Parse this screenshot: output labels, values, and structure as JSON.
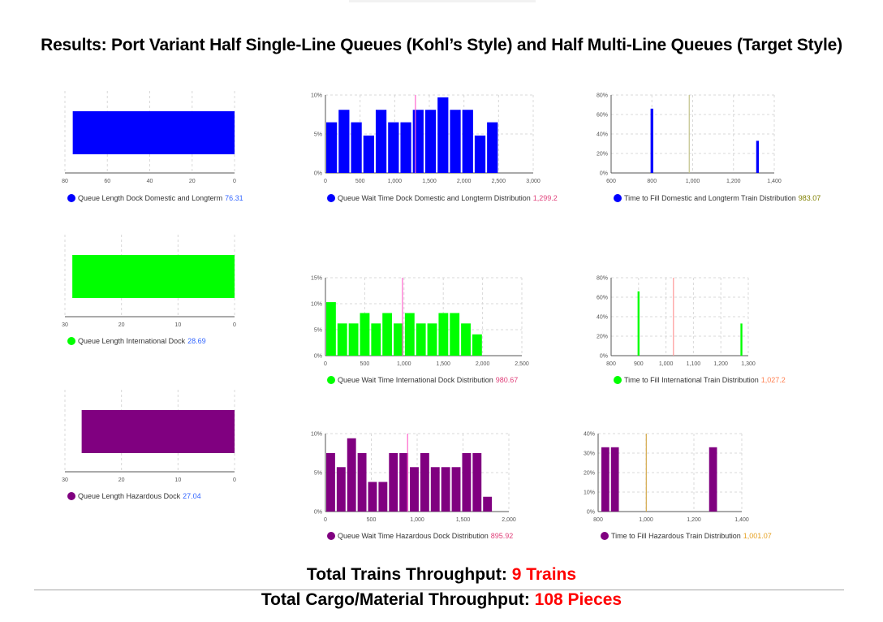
{
  "title": "Results: Port Variant Half Single-Line Queues (Kohl’s Style) and Half Multi-Line Queues (Target Style)",
  "footer": {
    "trains_label": "Total Trains Throughput:",
    "trains_value": "9 Trains",
    "cargo_label": "Total Cargo/Material Throughput:",
    "cargo_value": "108 Pieces"
  },
  "colors": {
    "domestic": "#0000ff",
    "international": "#00ff00",
    "hazardous": "#800080",
    "highlight": "#ff0000"
  },
  "chart_data": [
    {
      "type": "bar",
      "orientation": "horizontal-reversed",
      "series": [
        {
          "name": "Queue Length Dock Domestic and Longterm",
          "values": [
            76.31
          ]
        }
      ],
      "legend_value": "76.31",
      "value_color": "#3366ff",
      "xlim": [
        0,
        80
      ],
      "ticks": [
        80,
        60,
        40,
        20,
        0
      ],
      "tick_labels": [
        "80",
        "60",
        "40",
        "20",
        "0"
      ],
      "color": "#0000ff",
      "grid": true
    },
    {
      "type": "bar",
      "series": [
        {
          "name": "Queue Wait Time Dock Domestic and Longterm Distribution",
          "values": [
            6.5,
            8.1,
            6.5,
            4.8,
            8.1,
            6.5,
            6.5,
            8.1,
            8.1,
            9.7,
            8.1,
            8.1,
            4.8,
            6.5
          ]
        }
      ],
      "bin_start": 0,
      "bin_width": 178.6,
      "legend_value": "1,299.2",
      "value_color": "#e0407a",
      "marker": 1299.2,
      "marker_color": "#ff66cc",
      "xlim": [
        0,
        3000
      ],
      "ylim": [
        0,
        10
      ],
      "xticks": [
        0,
        500,
        1000,
        1500,
        2000,
        2500,
        3000
      ],
      "xtick_labels": [
        "0",
        "500",
        "1,000",
        "1,500",
        "2,000",
        "2,500",
        "3,000"
      ],
      "yticks": [
        0,
        5,
        10
      ],
      "ytick_labels": [
        "0%",
        "5%",
        "10%"
      ],
      "color": "#0000ff",
      "grid": true
    },
    {
      "type": "bar",
      "series": [
        {
          "name": "Time to Fill Domestic and Longterm Train Distribution",
          "points": [
            {
              "x": 800,
              "y": 66
            },
            {
              "x": 1318,
              "y": 33
            }
          ]
        }
      ],
      "bar_width_units": 13,
      "legend_value": "983.07",
      "value_color": "#808000",
      "marker": 983.07,
      "marker_color": "#c2c28a",
      "xlim": [
        600,
        1400
      ],
      "ylim": [
        0,
        80
      ],
      "xticks": [
        600,
        800,
        1000,
        1200,
        1400
      ],
      "xtick_labels": [
        "600",
        "800",
        "1,000",
        "1,200",
        "1,400"
      ],
      "yticks": [
        0,
        20,
        40,
        60,
        80
      ],
      "ytick_labels": [
        "0%",
        "20%",
        "40%",
        "60%",
        "80%"
      ],
      "color": "#0000ff",
      "grid": true
    },
    {
      "type": "bar",
      "orientation": "horizontal-reversed",
      "series": [
        {
          "name": "Queue Length International Dock",
          "values": [
            28.69
          ]
        }
      ],
      "legend_value": "28.69",
      "value_color": "#3366ff",
      "xlim": [
        0,
        30
      ],
      "ticks": [
        30,
        20,
        10,
        0
      ],
      "tick_labels": [
        "30",
        "20",
        "10",
        "0"
      ],
      "color": "#00ff00",
      "grid": true
    },
    {
      "type": "bar",
      "series": [
        {
          "name": "Queue Wait Time International Dock Distribution",
          "values": [
            10.3,
            6.2,
            6.2,
            8.2,
            6.2,
            8.2,
            6.2,
            8.2,
            6.2,
            6.2,
            8.2,
            8.2,
            6.2,
            4.1
          ]
        }
      ],
      "bin_start": 0,
      "bin_width": 143,
      "legend_value": "980.67",
      "value_color": "#e0407a",
      "marker": 980.67,
      "marker_color": "#ff66cc",
      "xlim": [
        0,
        2500
      ],
      "ylim": [
        0,
        15
      ],
      "xticks": [
        0,
        500,
        1000,
        1500,
        2000,
        2500
      ],
      "xtick_labels": [
        "0",
        "500",
        "1,000",
        "1,500",
        "2,000",
        "2,500"
      ],
      "yticks": [
        0,
        5,
        10,
        15
      ],
      "ytick_labels": [
        "0%",
        "5%",
        "10%",
        "15%"
      ],
      "color": "#00ff00",
      "grid": true
    },
    {
      "type": "bar",
      "series": [
        {
          "name": "Time to Fill International Train Distribution",
          "points": [
            {
              "x": 900,
              "y": 66
            },
            {
              "x": 1275,
              "y": 33
            }
          ]
        }
      ],
      "bar_width_units": 7,
      "legend_value": "1,027.2",
      "value_color": "#ff7f50",
      "marker": 1027.2,
      "marker_color": "#ff9999",
      "xlim": [
        800,
        1300
      ],
      "ylim": [
        0,
        80
      ],
      "xticks": [
        800,
        900,
        1000,
        1100,
        1200,
        1300
      ],
      "xtick_labels": [
        "800",
        "900",
        "1,000",
        "1,100",
        "1,200",
        "1,300"
      ],
      "yticks": [
        0,
        20,
        40,
        60,
        80
      ],
      "ytick_labels": [
        "0%",
        "20%",
        "40%",
        "60%",
        "80%"
      ],
      "color": "#00ff00",
      "grid": true
    },
    {
      "type": "bar",
      "orientation": "horizontal-reversed",
      "series": [
        {
          "name": "Queue Length Hazardous Dock",
          "values": [
            27.04
          ]
        }
      ],
      "legend_value": "27.04",
      "value_color": "#3366ff",
      "xlim": [
        0,
        30
      ],
      "ticks": [
        30,
        20,
        10,
        0
      ],
      "tick_labels": [
        "30",
        "20",
        "10",
        "0"
      ],
      "color": "#800080",
      "grid": true
    },
    {
      "type": "bar",
      "series": [
        {
          "name": "Queue Wait Time Hazardous Dock Distribution",
          "values": [
            7.5,
            5.7,
            9.4,
            7.5,
            3.8,
            3.8,
            7.5,
            7.5,
            5.7,
            7.5,
            5.7,
            5.7,
            5.7,
            7.5,
            7.5,
            1.9
          ]
        }
      ],
      "bin_start": 0,
      "bin_width": 114,
      "legend_value": "895.92",
      "value_color": "#e0407a",
      "marker": 895.92,
      "marker_color": "#ff66cc",
      "xlim": [
        0,
        2000
      ],
      "ylim": [
        0,
        10
      ],
      "xticks": [
        0,
        500,
        1000,
        1500,
        2000
      ],
      "xtick_labels": [
        "0",
        "500",
        "1,000",
        "1,500",
        "2,000"
      ],
      "yticks": [
        0,
        5,
        10
      ],
      "ytick_labels": [
        "0%",
        "5%",
        "10%"
      ],
      "color": "#800080",
      "grid": true
    },
    {
      "type": "bar",
      "series": [
        {
          "name": "Time to Fill Hazardous Train Distribution",
          "points": [
            {
              "x": 830,
              "y": 33
            },
            {
              "x": 870,
              "y": 33
            },
            {
              "x": 1280,
              "y": 33
            }
          ]
        }
      ],
      "bar_width_units": 33,
      "legend_value": "1,001.07",
      "value_color": "#e6a020",
      "marker": 1001.07,
      "marker_color": "#d4a84a",
      "xlim": [
        800,
        1400
      ],
      "ylim": [
        0,
        40
      ],
      "xticks": [
        800,
        1000,
        1200,
        1400
      ],
      "xtick_labels": [
        "800",
        "1,000",
        "1,200",
        "1,400"
      ],
      "yticks": [
        0,
        10,
        20,
        30,
        40
      ],
      "ytick_labels": [
        "0%",
        "10%",
        "20%",
        "30%",
        "40%"
      ],
      "color": "#800080",
      "grid": true
    }
  ]
}
